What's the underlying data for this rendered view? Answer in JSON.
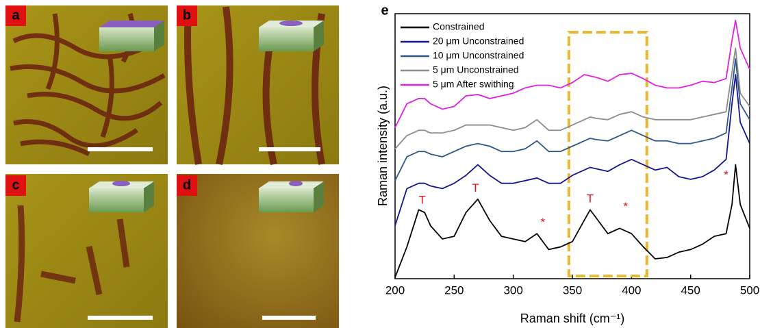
{
  "panels": [
    {
      "label": "a"
    },
    {
      "label": "b"
    },
    {
      "label": "c"
    },
    {
      "label": "d"
    }
  ],
  "chart_data": {
    "type": "line",
    "panel_label": "e",
    "x_label": "Raman shift (cm⁻¹)",
    "y_label": "Raman intensity (a.u.)",
    "x": [
      200,
      210,
      220,
      225,
      230,
      240,
      250,
      260,
      270,
      280,
      290,
      300,
      310,
      320,
      330,
      340,
      350,
      360,
      365,
      370,
      380,
      390,
      400,
      410,
      420,
      430,
      440,
      450,
      460,
      470,
      480,
      485,
      488,
      492,
      500
    ],
    "series": [
      {
        "name": "Constrained",
        "color": "#000000",
        "values": [
          0.05,
          1.2,
          2.6,
          2.5,
          2.0,
          1.5,
          1.6,
          2.5,
          3.0,
          2.2,
          1.6,
          1.5,
          1.4,
          1.7,
          1.1,
          1.2,
          1.4,
          2.2,
          2.6,
          2.3,
          1.7,
          1.9,
          1.7,
          1.2,
          0.75,
          0.8,
          1.0,
          1.1,
          1.3,
          1.6,
          1.7,
          2.8,
          4.3,
          2.8,
          1.9
        ]
      },
      {
        "name": "20 μm Unconstrained",
        "color": "#14148c",
        "values": [
          2.0,
          3.4,
          3.6,
          3.6,
          3.5,
          3.4,
          3.6,
          3.9,
          4.3,
          3.9,
          3.6,
          3.6,
          3.7,
          3.8,
          3.6,
          3.6,
          3.9,
          4.1,
          4.2,
          4.15,
          4.05,
          4.3,
          4.5,
          4.3,
          4.1,
          4.2,
          3.85,
          3.75,
          3.85,
          4.1,
          4.5,
          6.6,
          7.7,
          5.9,
          5.1
        ]
      },
      {
        "name": "10 μm Unconstrained",
        "color": "#2e5587",
        "values": [
          3.7,
          4.6,
          4.8,
          4.8,
          4.7,
          4.6,
          4.8,
          5.0,
          5.1,
          5.0,
          4.8,
          4.8,
          4.9,
          5.2,
          4.8,
          4.8,
          5.0,
          5.2,
          5.3,
          5.25,
          5.2,
          5.4,
          5.6,
          5.4,
          5.2,
          5.2,
          5.1,
          5.1,
          5.2,
          5.3,
          5.5,
          7.2,
          8.3,
          6.6,
          6.0
        ]
      },
      {
        "name": "5 μm Unconstrained",
        "color": "#8c8c8c",
        "values": [
          4.9,
          5.4,
          5.6,
          5.6,
          5.5,
          5.5,
          5.6,
          5.8,
          5.8,
          5.8,
          5.7,
          5.6,
          5.7,
          6.0,
          5.6,
          5.6,
          5.8,
          6.0,
          6.1,
          6.05,
          6.0,
          6.2,
          6.3,
          6.1,
          6.0,
          6.0,
          6.0,
          6.0,
          6.1,
          6.2,
          6.3,
          7.8,
          8.7,
          7.0,
          6.5
        ]
      },
      {
        "name": "5 μm After swithing",
        "color": "#e020e0",
        "values": [
          5.7,
          6.6,
          6.8,
          6.8,
          6.6,
          6.4,
          6.5,
          6.9,
          6.95,
          6.8,
          6.9,
          7.0,
          7.2,
          7.3,
          7.3,
          7.2,
          7.4,
          7.7,
          7.65,
          7.6,
          7.45,
          7.7,
          7.75,
          7.55,
          7.3,
          7.2,
          7.2,
          7.3,
          7.45,
          7.4,
          7.55,
          9.0,
          9.75,
          8.7,
          7.9
        ]
      }
    ],
    "xlim": [
      200,
      500
    ],
    "ylim": [
      0,
      10
    ],
    "xticks": [
      200,
      250,
      300,
      350,
      400,
      450,
      500
    ],
    "annotations": [
      {
        "text": "T",
        "x": 223,
        "y": 2.95
      },
      {
        "text": "T",
        "x": 268,
        "y": 3.4
      },
      {
        "text": "T",
        "x": 365,
        "y": 3.0
      },
      {
        "text": "*",
        "x": 325,
        "y": 2.1
      },
      {
        "text": "*",
        "x": 395,
        "y": 2.7
      },
      {
        "text": "*",
        "x": 480,
        "y": 3.9
      }
    ],
    "annotation_color": "#e01010",
    "highlight": {
      "x": [
        347,
        413
      ],
      "y": [
        0.1,
        9.3
      ],
      "color": "#e8b830"
    }
  }
}
